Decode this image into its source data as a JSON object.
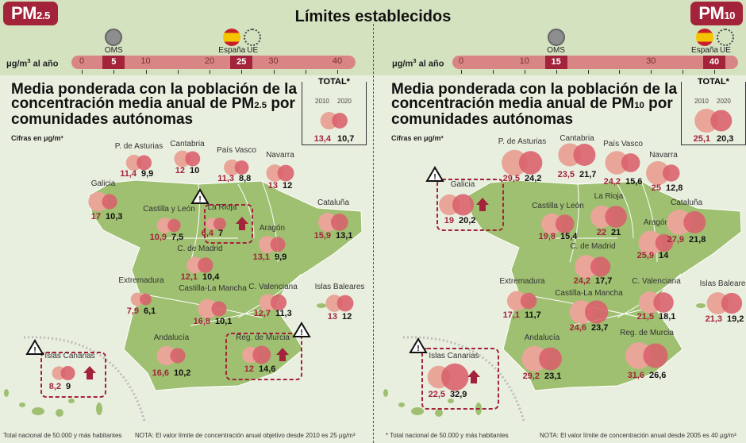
{
  "header": {
    "title": "Límites establecidos"
  },
  "colors": {
    "bubble_2010": "#e8a598",
    "bubble_2020": "#d9606b",
    "value_2010": "#a3243a",
    "value_2020": "#111111",
    "map_land": "#9fc071",
    "badge": "#a3243a"
  },
  "panels": [
    {
      "badge_main": "PM",
      "badge_sub": "2.5",
      "unit_label": "μg/m",
      "unit_sup": "3",
      "unit_suffix": " al año",
      "scale": {
        "min": 0,
        "max": 40,
        "ticks": [
          0,
          5,
          10,
          15,
          20,
          25,
          30,
          35,
          40
        ],
        "tick_labels": [
          0,
          10,
          20,
          30,
          40
        ],
        "markers": [
          {
            "label": "OMS",
            "value": 5,
            "icon": "who-emblem-icon"
          },
          {
            "label": "España",
            "value": 25,
            "icon": "spain-flag-icon"
          },
          {
            "label": "UE",
            "value": 25,
            "icon": "eu-stars-icon"
          }
        ]
      },
      "title_a": "Media ponderada con la población de la concentración media anual de PM",
      "title_sub": "2.5",
      "title_b": " por comunidades autónomas",
      "units_note": "Cifras en μg/m³",
      "total": {
        "label": "TOTAL*",
        "year_a": "2010",
        "year_b": "2020",
        "v2010": "13,4",
        "v2020": "10,7"
      },
      "regions": [
        {
          "name": "P. de Asturias",
          "v2010": "11,4",
          "v2020": "9,9"
        },
        {
          "name": "Cantabria",
          "v2010": "12",
          "v2020": "10"
        },
        {
          "name": "País Vasco",
          "v2010": "11,3",
          "v2020": "8,8"
        },
        {
          "name": "Navarra",
          "v2010": "13",
          "v2020": "12"
        },
        {
          "name": "Galicia",
          "v2010": "17",
          "v2020": "10,3"
        },
        {
          "name": "Castilla y León",
          "v2010": "10,9",
          "v2020": "7,5"
        },
        {
          "name": "La Rioja",
          "v2010": "6,4",
          "v2020": "7",
          "alert": true
        },
        {
          "name": "Aragón",
          "v2010": "13,1",
          "v2020": "9,9"
        },
        {
          "name": "Cataluña",
          "v2010": "15,9",
          "v2020": "13,1"
        },
        {
          "name": "C. de Madrid",
          "v2010": "12,1",
          "v2020": "10,4"
        },
        {
          "name": "Extremadura",
          "v2010": "7,9",
          "v2020": "6,1"
        },
        {
          "name": "Castilla-La Mancha",
          "v2010": "16,8",
          "v2020": "10,1"
        },
        {
          "name": "C. Valenciana",
          "v2010": "12,7",
          "v2020": "11,3"
        },
        {
          "name": "Islas Baleares",
          "v2010": "13",
          "v2020": "12"
        },
        {
          "name": "Andalucía",
          "v2010": "16,6",
          "v2020": "10,2"
        },
        {
          "name": "Reg. de Murcia",
          "v2010": "12",
          "v2020": "14,6",
          "alert": true
        },
        {
          "name": "Islas Canarias",
          "v2010": "8,2",
          "v2020": "9",
          "alert": true
        }
      ],
      "footnote_a": "Total nacional de 50.000 y más habitantes",
      "footnote_b": "NOTA: El valor límite de concentración anual objetivo desde 2010 es 25 μg/m³"
    },
    {
      "badge_main": "PM",
      "badge_sub": "10",
      "unit_label": "μg/m",
      "unit_sup": "3",
      "unit_suffix": " al año",
      "scale": {
        "min": 0,
        "max": 40,
        "ticks": [
          0,
          5,
          10,
          15,
          20,
          25,
          30,
          35,
          40
        ],
        "tick_labels": [
          0,
          10,
          30
        ],
        "markers": [
          {
            "label": "OMS",
            "value": 15,
            "icon": "who-emblem-icon"
          },
          {
            "label": "España",
            "value": 40,
            "icon": "spain-flag-icon"
          },
          {
            "label": "UE",
            "value": 40,
            "icon": "eu-stars-icon"
          }
        ]
      },
      "title_a": "Media ponderada con la población de la concentración media anual de PM",
      "title_sub": "10",
      "title_b": " por comunidades autónomas",
      "units_note": "Cifras en μg/m³",
      "total": {
        "label": "TOTAL*",
        "year_a": "2010",
        "year_b": "2020",
        "v2010": "25,1",
        "v2020": "20,3"
      },
      "regions": [
        {
          "name": "P. de Asturias",
          "v2010": "29,5",
          "v2020": "24,2"
        },
        {
          "name": "Cantabria",
          "v2010": "23,5",
          "v2020": "21,7"
        },
        {
          "name": "País Vasco",
          "v2010": "24,2",
          "v2020": "15,6"
        },
        {
          "name": "Navarra",
          "v2010": "25",
          "v2020": "12,8"
        },
        {
          "name": "Galicia",
          "v2010": "19",
          "v2020": "20,2",
          "alert": true
        },
        {
          "name": "Castilla y León",
          "v2010": "19,8",
          "v2020": "15,4"
        },
        {
          "name": "La Rioja",
          "v2010": "22",
          "v2020": "21"
        },
        {
          "name": "Aragón",
          "v2010": "25,9",
          "v2020": "14"
        },
        {
          "name": "Cataluña",
          "v2010": "27,9",
          "v2020": "21,8"
        },
        {
          "name": "C. de Madrid",
          "v2010": "24,2",
          "v2020": "17,7"
        },
        {
          "name": "Extremadura",
          "v2010": "17,1",
          "v2020": "11,7"
        },
        {
          "name": "Castilla-La Mancha",
          "v2010": "24,6",
          "v2020": "23,7"
        },
        {
          "name": "C. Valenciana",
          "v2010": "21,5",
          "v2020": "18,1"
        },
        {
          "name": "Islas Baleares",
          "v2010": "21,3",
          "v2020": "19,2"
        },
        {
          "name": "Andalucía",
          "v2010": "29,2",
          "v2020": "23,1"
        },
        {
          "name": "Reg. de Murcia",
          "v2010": "31,6",
          "v2020": "26,6"
        },
        {
          "name": "Islas Canarias",
          "v2010": "22,5",
          "v2020": "32,9",
          "alert": true
        }
      ],
      "footnote_a": "* Total nacional de 50.000 y más habitantes",
      "footnote_b": "NOTA: El valor límite de concentración anual desde 2005 es 40 μg/m³"
    }
  ]
}
